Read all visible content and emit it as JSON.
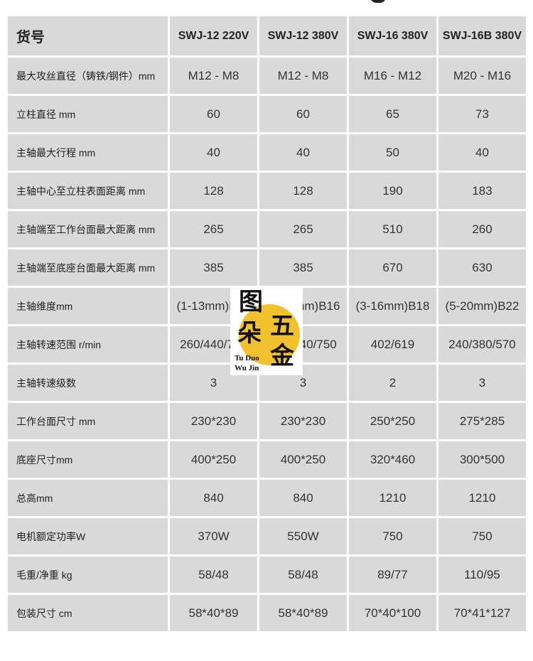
{
  "header": {
    "label": "货号",
    "models": [
      "SWJ-12 220V",
      "SWJ-12 380V",
      "SWJ-16 380V",
      "SWJ-16B 380V"
    ]
  },
  "rows": [
    {
      "label": "最大攻丝直径（铸铁/钢件）mm",
      "values": [
        "M12 - M8",
        "M12 - M8",
        "M16 - M12",
        "M20 - M16"
      ]
    },
    {
      "label": "立柱直径 mm",
      "values": [
        "60",
        "60",
        "65",
        "73"
      ]
    },
    {
      "label": "主轴最大行程 mm",
      "values": [
        "40",
        "40",
        "50",
        "40"
      ]
    },
    {
      "label": "主轴中心至立柱表面距离 mm",
      "values": [
        "128",
        "128",
        "190",
        "183"
      ]
    },
    {
      "label": "主轴端至工作台面最大距离 mm",
      "values": [
        "265",
        "265",
        "510",
        "260"
      ]
    },
    {
      "label": "主轴端至底座台面最大距离 mm",
      "values": [
        "385",
        "385",
        "670",
        "630"
      ]
    },
    {
      "label": "主轴维度mm",
      "values": [
        "(1-13mm)B16",
        "(1-13mm)B16",
        "(3-16mm)B18",
        "(5-20mm)B22"
      ]
    },
    {
      "label": "主轴转速范围 r/min",
      "values": [
        "260/440/750",
        "260/440/750",
        "402/619",
        "240/380/570"
      ]
    },
    {
      "label": "主轴转速级数",
      "values": [
        "3",
        "3",
        "2",
        "3"
      ]
    },
    {
      "label": "工作台面尺寸 mm",
      "values": [
        "230*230",
        "230*230",
        "250*250",
        "275*285"
      ]
    },
    {
      "label": "底座尺寸mm",
      "values": [
        "400*250",
        "400*250",
        "320*460",
        "300*500"
      ]
    },
    {
      "label": "总高mm",
      "values": [
        "840",
        "840",
        "1210",
        "1210"
      ]
    },
    {
      "label": "电机额定功率W",
      "values": [
        "370W",
        "550W",
        "750",
        "750"
      ]
    },
    {
      "label": "毛重/净重 kg",
      "values": [
        "58/48",
        "58/48",
        "89/77",
        "110/95"
      ]
    },
    {
      "label": "包装尺寸 cm",
      "values": [
        "58*40*89",
        "58*40*89",
        "70*40*100",
        "70*41*127"
      ]
    }
  ],
  "logo": {
    "chars": [
      "图",
      "朵",
      "五",
      "金"
    ],
    "line1": "Tu Duo",
    "line2": "Wu Jin",
    "accent": "#f2c12e"
  }
}
